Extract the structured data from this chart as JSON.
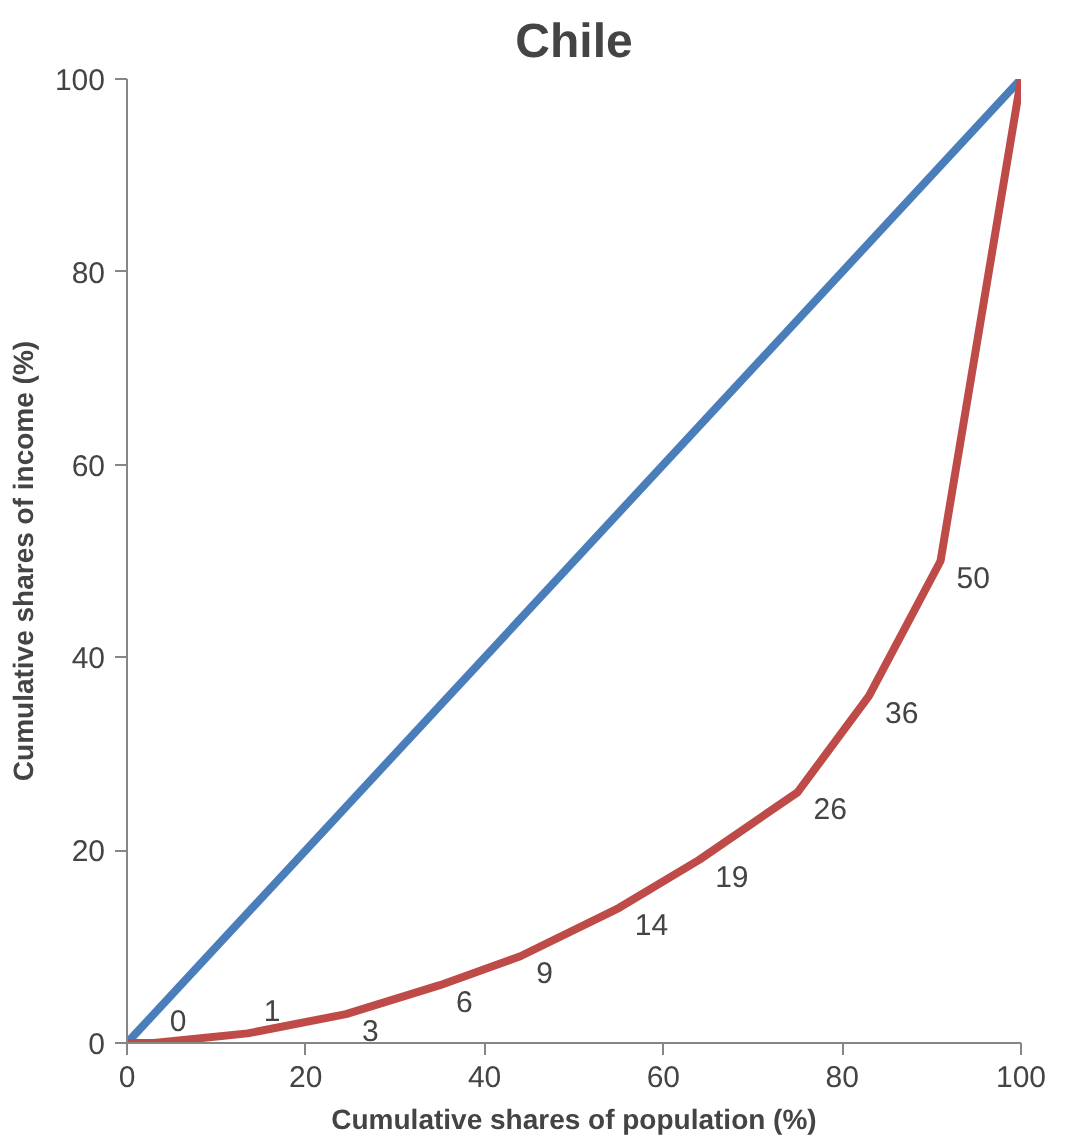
{
  "chart_data": {
    "type": "line",
    "title": "Chile",
    "xlabel": "Cumulative shares of population (%)",
    "ylabel": "Cumulative shares of income (%)",
    "xlim": [
      0,
      100
    ],
    "ylim": [
      0,
      100
    ],
    "xticks": [
      0,
      20,
      40,
      60,
      80,
      100
    ],
    "yticks": [
      0,
      20,
      40,
      60,
      80,
      100
    ],
    "grid": false,
    "marker": "none",
    "line_style": "solid",
    "series": [
      {
        "color": "#4a7ebb",
        "x": [
          0,
          100
        ],
        "values": [
          0,
          100
        ]
      },
      {
        "color": "#be4b48",
        "x": [
          0,
          3,
          13.5,
          24.5,
          35,
          44,
          55,
          64,
          75,
          83,
          91,
          100
        ],
        "values": [
          0,
          0,
          1,
          3,
          6,
          9,
          14,
          19,
          26,
          36,
          50,
          100
        ],
        "value_labels": [
          null,
          "0",
          "1",
          "3",
          "6",
          "9",
          "14",
          "19",
          "26",
          "36",
          "50",
          null
        ]
      }
    ]
  }
}
